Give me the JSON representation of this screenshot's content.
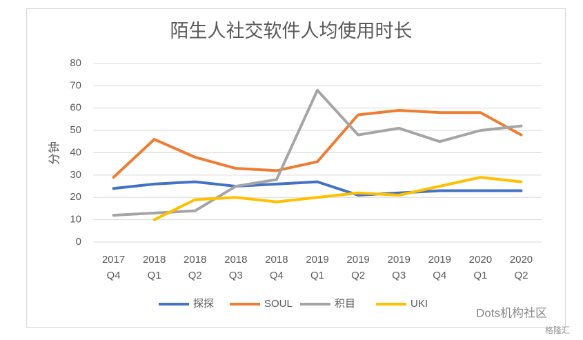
{
  "chart_data": {
    "type": "line",
    "title": "陌生人社交软件人均使用时长",
    "y_label": "分钟",
    "categories": [
      [
        "2017",
        "Q4"
      ],
      [
        "2018",
        "Q1"
      ],
      [
        "2018",
        "Q2"
      ],
      [
        "2018",
        "Q3"
      ],
      [
        "2018",
        "Q4"
      ],
      [
        "2019",
        "Q1"
      ],
      [
        "2019",
        "Q2"
      ],
      [
        "2019",
        "Q3"
      ],
      [
        "2019",
        "Q4"
      ],
      [
        "2020",
        "Q1"
      ],
      [
        "2020",
        "Q2"
      ]
    ],
    "series": [
      {
        "name": "探探",
        "color": "#4472c4",
        "values": [
          24,
          26,
          27,
          25,
          26,
          27,
          21,
          22,
          23,
          23,
          23
        ]
      },
      {
        "name": "SOUL",
        "color": "#ed7d31",
        "values": [
          29,
          46,
          38,
          33,
          32,
          36,
          57,
          59,
          58,
          58,
          48
        ]
      },
      {
        "name": "积目",
        "color": "#a5a5a5",
        "values": [
          12,
          13,
          14,
          25,
          28,
          68,
          48,
          51,
          45,
          50,
          52
        ]
      },
      {
        "name": "UKI",
        "color": "#ffc000",
        "values": [
          null,
          10,
          19,
          20,
          18,
          20,
          22,
          21,
          25,
          29,
          27
        ]
      }
    ],
    "ylim": [
      0,
      80
    ],
    "yticks": [
      0,
      10,
      20,
      30,
      40,
      50,
      60,
      70,
      80
    ],
    "grid": true,
    "legend": "bottom",
    "watermark": "Dots机构社区",
    "watermark2": "格隆汇"
  }
}
